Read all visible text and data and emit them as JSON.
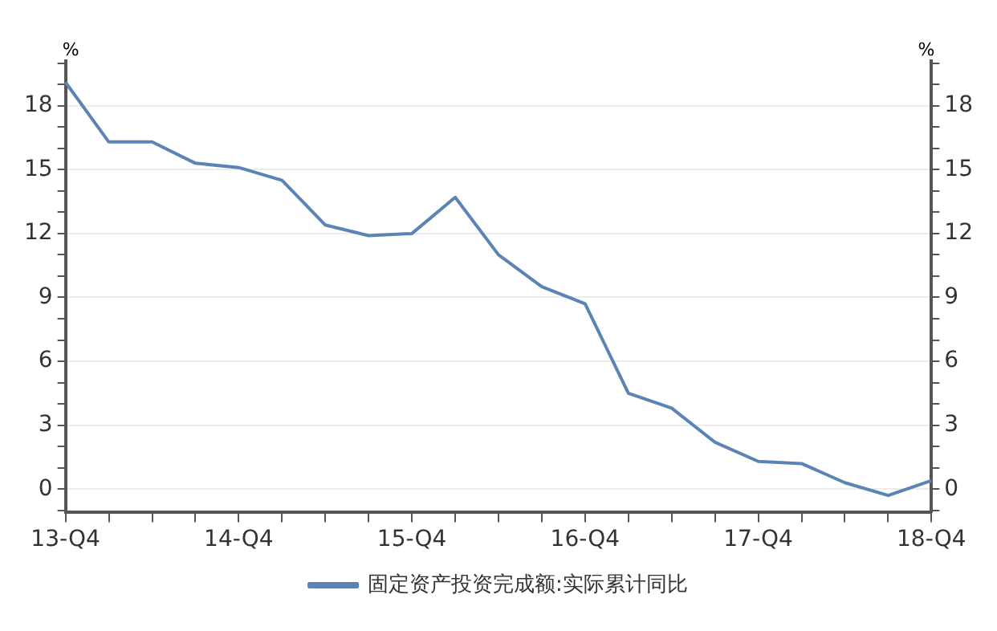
{
  "chart_data": {
    "type": "line",
    "ylabel": "%",
    "y2label": "%",
    "categories": [
      "13-Q4",
      null,
      null,
      null,
      "14-Q4",
      null,
      null,
      null,
      "15-Q4",
      null,
      null,
      null,
      "16-Q4",
      null,
      null,
      null,
      "17-Q4",
      null,
      null,
      null,
      "18-Q4"
    ],
    "series": [
      {
        "name": "固定资产投资完成额:实际累计同比",
        "color": "#5b84b5",
        "values": [
          19.1,
          16.3,
          16.3,
          15.3,
          15.1,
          14.5,
          12.4,
          11.9,
          12.0,
          13.7,
          11.0,
          9.5,
          8.7,
          4.5,
          3.8,
          2.2,
          1.3,
          1.2,
          0.3,
          -0.3,
          0.4
        ]
      }
    ],
    "ylim": [
      -1.1,
      20.1
    ],
    "yticks": [
      {
        "value": -1,
        "label": null
      },
      0,
      {
        "value": 1,
        "label": null
      },
      {
        "value": 2,
        "label": null
      },
      3,
      {
        "value": 4,
        "label": null
      },
      {
        "value": 5,
        "label": null
      },
      6,
      {
        "value": 7,
        "label": null
      },
      {
        "value": 8,
        "label": null
      },
      9,
      {
        "value": 10,
        "label": null
      },
      {
        "value": 11,
        "label": null
      },
      12,
      {
        "value": 13,
        "label": null
      },
      {
        "value": 14,
        "label": null
      },
      15,
      {
        "value": 16,
        "label": null
      },
      {
        "value": 17,
        "label": null
      },
      18,
      {
        "value": 19,
        "label": null
      },
      {
        "value": 20,
        "label": null
      }
    ],
    "y2lim": [
      -1.1,
      20.1
    ],
    "y2ticks": [
      {
        "value": -1,
        "label": null
      },
      0,
      {
        "value": 1,
        "label": null
      },
      {
        "value": 2,
        "label": null
      },
      3,
      {
        "value": 4,
        "label": null
      },
      {
        "value": 5,
        "label": null
      },
      6,
      {
        "value": 7,
        "label": null
      },
      {
        "value": 8,
        "label": null
      },
      9,
      {
        "value": 10,
        "label": null
      },
      {
        "value": 11,
        "label": null
      },
      12,
      {
        "value": 13,
        "label": null
      },
      {
        "value": 14,
        "label": null
      },
      15,
      {
        "value": 16,
        "label": null
      },
      {
        "value": 17,
        "label": null
      },
      18,
      {
        "value": 19,
        "label": null
      },
      {
        "value": 20,
        "label": null
      }
    ],
    "grid": "y",
    "legend": "bottom",
    "marker": "none",
    "line_style": "solid"
  }
}
